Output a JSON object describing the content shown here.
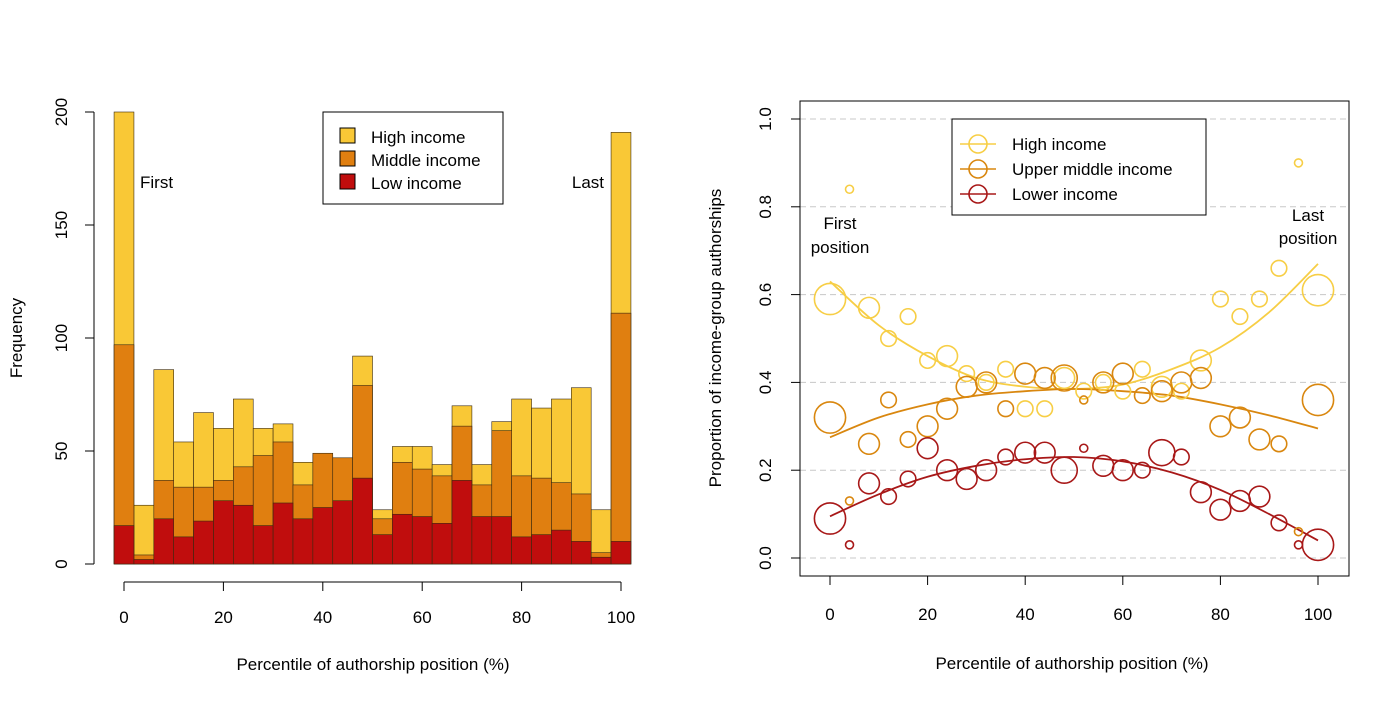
{
  "chart_data": [
    {
      "type": "bar",
      "subtype": "overlaid histogram",
      "xlabel": "Percentile of authorship position (%)",
      "ylabel": "Frequency",
      "xlim": [
        -2,
        102
      ],
      "ylim": [
        0,
        200
      ],
      "x_ticks": [
        "0",
        "20",
        "40",
        "60",
        "80",
        "100"
      ],
      "y_ticks": [
        "0",
        "50",
        "100",
        "150",
        "200"
      ],
      "bin_width": 4,
      "bin_starts": [
        -2,
        2,
        6,
        10,
        14,
        18,
        22,
        26,
        30,
        34,
        38,
        42,
        46,
        50,
        54,
        58,
        62,
        66,
        70,
        74,
        78,
        82,
        86,
        90,
        94,
        98
      ],
      "series": [
        {
          "name": "High income",
          "color": "#F9C836",
          "values": [
            200,
            26,
            86,
            54,
            67,
            60,
            73,
            60,
            62,
            45,
            48,
            46,
            92,
            24,
            52,
            52,
            44,
            70,
            44,
            63,
            73,
            69,
            73,
            78,
            24,
            191
          ]
        },
        {
          "name": "Middle income",
          "color": "#E07F10",
          "values": [
            97,
            4,
            37,
            34,
            34,
            37,
            43,
            48,
            54,
            35,
            49,
            47,
            79,
            20,
            45,
            42,
            39,
            61,
            35,
            59,
            39,
            38,
            36,
            31,
            5,
            111
          ]
        },
        {
          "name": "Low income",
          "color": "#C00D0D",
          "values": [
            17,
            2,
            20,
            12,
            19,
            28,
            26,
            17,
            27,
            20,
            25,
            28,
            38,
            13,
            22,
            21,
            18,
            37,
            21,
            21,
            12,
            13,
            15,
            10,
            3,
            10
          ]
        }
      ],
      "annotations": [
        "First",
        "Last"
      ],
      "legend_position": "top"
    },
    {
      "type": "scatter",
      "subtype": "bubble with fitted curves",
      "xlabel": "Percentile of authorship position (%)",
      "ylabel": "Proportion  of  income-group  authorships",
      "xlim": [
        -6,
        106
      ],
      "ylim": [
        -0.04,
        1.04
      ],
      "x_ticks": [
        "0",
        "20",
        "40",
        "60",
        "80",
        "100"
      ],
      "y_ticks": [
        "0.0",
        "0.2",
        "0.4",
        "0.6",
        "0.8",
        "1.0"
      ],
      "grid": "horizontal dashed",
      "series": [
        {
          "name": "High income",
          "color": "#F7CE45",
          "points": [
            [
              0,
              0.59
            ],
            [
              4,
              0.84
            ],
            [
              8,
              0.57
            ],
            [
              12,
              0.5
            ],
            [
              16,
              0.55
            ],
            [
              20,
              0.45
            ],
            [
              24,
              0.46
            ],
            [
              28,
              0.42
            ],
            [
              32,
              0.4
            ],
            [
              36,
              0.43
            ],
            [
              40,
              0.34
            ],
            [
              44,
              0.34
            ],
            [
              48,
              0.41
            ],
            [
              52,
              0.38
            ],
            [
              56,
              0.4
            ],
            [
              60,
              0.38
            ],
            [
              64,
              0.43
            ],
            [
              68,
              0.39
            ],
            [
              72,
              0.38
            ],
            [
              76,
              0.45
            ],
            [
              80,
              0.59
            ],
            [
              84,
              0.55
            ],
            [
              88,
              0.59
            ],
            [
              92,
              0.66
            ],
            [
              96,
              0.9
            ],
            [
              100,
              0.61
            ]
          ],
          "sizes": [
            3,
            1,
            2,
            1.5,
            1.5,
            1.5,
            2,
            1.5,
            1.5,
            1.5,
            1.5,
            1.5,
            2,
            1.5,
            1.5,
            1.5,
            1.5,
            2,
            1.5,
            2,
            1.5,
            1.5,
            1.5,
            1.5,
            1,
            3
          ]
        },
        {
          "name": "Upper middle income",
          "color": "#D9870F",
          "points": [
            [
              0,
              0.32
            ],
            [
              4,
              0.13
            ],
            [
              8,
              0.26
            ],
            [
              12,
              0.36
            ],
            [
              16,
              0.27
            ],
            [
              20,
              0.3
            ],
            [
              24,
              0.34
            ],
            [
              28,
              0.39
            ],
            [
              32,
              0.4
            ],
            [
              36,
              0.34
            ],
            [
              40,
              0.42
            ],
            [
              44,
              0.41
            ],
            [
              48,
              0.41
            ],
            [
              52,
              0.36
            ],
            [
              56,
              0.4
            ],
            [
              60,
              0.42
            ],
            [
              64,
              0.37
            ],
            [
              68,
              0.38
            ],
            [
              72,
              0.4
            ],
            [
              76,
              0.41
            ],
            [
              80,
              0.3
            ],
            [
              84,
              0.32
            ],
            [
              88,
              0.27
            ],
            [
              92,
              0.26
            ],
            [
              96,
              0.06
            ],
            [
              100,
              0.36
            ]
          ],
          "sizes": [
            3,
            1,
            2,
            1.5,
            1.5,
            2,
            2,
            2,
            2,
            1.5,
            2,
            2,
            2.5,
            1,
            2,
            2,
            1.5,
            2,
            2,
            2,
            2,
            2,
            2,
            1.5,
            1,
            3
          ]
        },
        {
          "name": "Lower income",
          "color": "#A81818",
          "points": [
            [
              0,
              0.09
            ],
            [
              4,
              0.03
            ],
            [
              8,
              0.17
            ],
            [
              12,
              0.14
            ],
            [
              16,
              0.18
            ],
            [
              20,
              0.25
            ],
            [
              24,
              0.2
            ],
            [
              28,
              0.18
            ],
            [
              32,
              0.2
            ],
            [
              36,
              0.23
            ],
            [
              40,
              0.24
            ],
            [
              44,
              0.24
            ],
            [
              48,
              0.2
            ],
            [
              52,
              0.25
            ],
            [
              56,
              0.21
            ],
            [
              60,
              0.2
            ],
            [
              64,
              0.2
            ],
            [
              68,
              0.24
            ],
            [
              72,
              0.23
            ],
            [
              76,
              0.15
            ],
            [
              80,
              0.11
            ],
            [
              84,
              0.13
            ],
            [
              88,
              0.14
            ],
            [
              92,
              0.08
            ],
            [
              96,
              0.03
            ],
            [
              100,
              0.03
            ]
          ],
          "sizes": [
            3,
            1,
            2,
            1.5,
            1.5,
            2,
            2,
            2,
            2,
            1.5,
            2,
            2,
            2.5,
            1,
            2,
            2,
            1.5,
            2.5,
            1.5,
            2,
            2,
            2,
            2,
            1.5,
            1,
            3
          ]
        }
      ],
      "fitted_curves": [
        {
          "series": "High income",
          "x": [
            0,
            10,
            20,
            30,
            40,
            50,
            60,
            70,
            80,
            90,
            100
          ],
          "y": [
            0.63,
            0.53,
            0.46,
            0.41,
            0.39,
            0.385,
            0.395,
            0.43,
            0.48,
            0.56,
            0.67
          ]
        },
        {
          "series": "Upper middle income",
          "x": [
            0,
            10,
            20,
            30,
            40,
            50,
            60,
            70,
            80,
            90,
            100
          ],
          "y": [
            0.275,
            0.32,
            0.35,
            0.37,
            0.38,
            0.385,
            0.38,
            0.37,
            0.35,
            0.325,
            0.295
          ]
        },
        {
          "series": "Lower income",
          "x": [
            0,
            10,
            20,
            30,
            40,
            50,
            60,
            70,
            80,
            90,
            100
          ],
          "y": [
            0.095,
            0.145,
            0.185,
            0.21,
            0.225,
            0.23,
            0.22,
            0.195,
            0.155,
            0.1,
            0.04
          ]
        }
      ],
      "annotations": [
        "First",
        "position",
        "Last",
        "position"
      ],
      "legend_position": "top"
    }
  ]
}
